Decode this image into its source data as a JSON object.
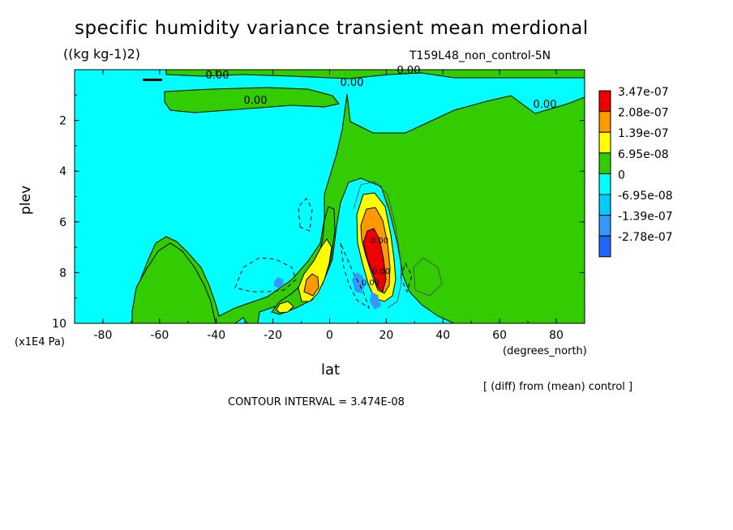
{
  "header": {
    "title": "specific humidity variance transient mean merdional",
    "units": "((kg kg-1)2)",
    "run_label": "T159L48_non_control-5N"
  },
  "footer": {
    "diff_label": "[ (diff) from (mean) control ]",
    "contour_interval": "CONTOUR INTERVAL = 3.474E-08"
  },
  "chart_data": {
    "type": "heatmap",
    "title": "specific humidity variance transient mean merdional",
    "xlabel": "lat",
    "xunits": "(degrees_north)",
    "ylabel": "plev",
    "yunits": "(x1E4 Pa)",
    "xlim": [
      -90,
      90
    ],
    "ylim": [
      0,
      10
    ],
    "y_inverted": true,
    "x_ticks": [
      -80,
      -60,
      -40,
      -20,
      0,
      20,
      40,
      60,
      80
    ],
    "y_ticks": [
      2,
      4,
      6,
      8,
      10
    ],
    "contour_labels": [
      "0.00",
      "0.00",
      "0.00",
      "0.00",
      "0.00",
      "0.00",
      "0.00",
      "0.00"
    ],
    "colorbar": {
      "labels": [
        "3.47e-07",
        "2.08e-07",
        "1.39e-07",
        "6.95e-08",
        "0",
        "-6.95e-08",
        "-1.39e-07",
        "-2.78e-07"
      ],
      "colors": [
        "#ee0000",
        "#ff9900",
        "#ffff00",
        "#33cc00",
        "#00ffff",
        "#00ccff",
        "#3399ff",
        "#2266ff"
      ]
    },
    "field_colors": {
      "positive_low": "#33cc00",
      "zero_negative": "#00ffff",
      "negative_mid": "#3399ff",
      "positive_mid": "#ffff00",
      "positive_high": "#ff9900",
      "positive_max": "#ee0000"
    }
  }
}
